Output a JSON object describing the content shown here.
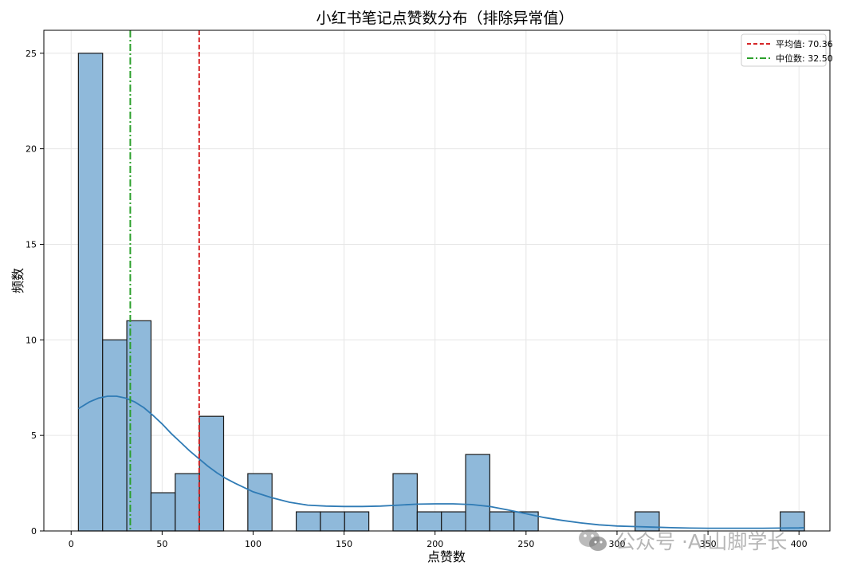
{
  "chart_data": {
    "type": "histogram",
    "title": "小红书笔记点赞数分布（排除异常值）",
    "xlabel": "点赞数",
    "ylabel": "频数",
    "xlim": [
      -15,
      417
    ],
    "ylim": [
      0,
      26.2
    ],
    "x_ticks": [
      0,
      50,
      100,
      150,
      200,
      250,
      300,
      350,
      400
    ],
    "y_ticks": [
      0,
      5,
      10,
      15,
      20,
      25
    ],
    "grid": true,
    "bin_edges": [
      4.0,
      17.3,
      30.6,
      43.9,
      57.2,
      70.5,
      83.8,
      97.1,
      110.4,
      123.7,
      137.0,
      150.3,
      163.6,
      176.9,
      190.2,
      203.5,
      216.8,
      230.1,
      243.4,
      256.7,
      270.0,
      283.3,
      296.6,
      309.9,
      323.2,
      336.5,
      349.8,
      363.1,
      376.4,
      389.7,
      403.0
    ],
    "counts": [
      25,
      10,
      11,
      2,
      3,
      6,
      0,
      3,
      0,
      1,
      1,
      1,
      0,
      3,
      1,
      1,
      4,
      1,
      1,
      0,
      0,
      0,
      0,
      1,
      0,
      0,
      0,
      0,
      0,
      1
    ],
    "bar_color": "#8fb9da",
    "kde": {
      "color": "#2f7bb5",
      "x": [
        4,
        10,
        15,
        20,
        25,
        30,
        35,
        40,
        45,
        50,
        55,
        60,
        65,
        70,
        75,
        80,
        85,
        90,
        100,
        110,
        120,
        130,
        140,
        150,
        160,
        170,
        180,
        190,
        200,
        210,
        220,
        230,
        240,
        250,
        260,
        270,
        280,
        290,
        300,
        310,
        320,
        330,
        340,
        350,
        360,
        370,
        380,
        390,
        400,
        403
      ],
      "y": [
        6.4,
        6.75,
        6.95,
        7.05,
        7.05,
        6.95,
        6.75,
        6.45,
        6.05,
        5.6,
        5.1,
        4.65,
        4.2,
        3.8,
        3.4,
        3.05,
        2.75,
        2.5,
        2.05,
        1.75,
        1.5,
        1.35,
        1.3,
        1.28,
        1.28,
        1.3,
        1.35,
        1.4,
        1.42,
        1.42,
        1.38,
        1.28,
        1.1,
        0.9,
        0.7,
        0.55,
        0.42,
        0.32,
        0.26,
        0.23,
        0.2,
        0.17,
        0.15,
        0.14,
        0.14,
        0.14,
        0.14,
        0.15,
        0.16,
        0.17
      ]
    },
    "vlines": [
      {
        "label": "平均值: 70.36",
        "x": 70.36,
        "color": "#d62728",
        "style": "dashed"
      },
      {
        "label": "中位数: 32.50",
        "x": 32.5,
        "color": "#2ca02c",
        "style": "dashdot"
      }
    ],
    "legend_position": "top-right"
  },
  "watermark": {
    "text": "公众号 ·AI山脚学长",
    "icon": "wechat-icon"
  }
}
